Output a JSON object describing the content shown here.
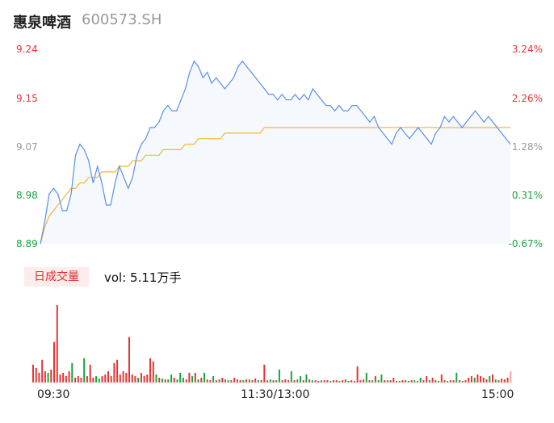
{
  "header": {
    "name": "惠泉啤酒",
    "code": "600573.SH"
  },
  "volume": {
    "tab_label": "日成交量",
    "vol_text": "vol: 5.11万手"
  },
  "colors": {
    "price_line": "#5b8fe6",
    "avg_line": "#f5b733",
    "up": "#e83333",
    "down": "#1aa33a",
    "flat": "#999999"
  },
  "chart_data": {
    "type": "line",
    "x_ticks": [
      "09:30",
      "11:30/13:00",
      "15:00"
    ],
    "y_left_ticks": [
      "9.24",
      "9.15",
      "9.07",
      "8.98",
      "8.89"
    ],
    "y_right_ticks": [
      "3.24%",
      "2.26%",
      "1.28%",
      "0.31%",
      "-0.67%"
    ],
    "ylim": [
      8.89,
      9.24
    ],
    "series": [
      {
        "values": [
          8.89,
          8.93,
          8.98,
          8.99,
          8.98,
          8.95,
          8.95,
          8.98,
          9.05,
          9.07,
          9.06,
          9.04,
          9.0,
          9.03,
          9.0,
          8.96,
          8.96,
          9.0,
          9.03,
          9.01,
          8.99,
          9.01,
          9.05,
          9.07,
          9.08,
          9.1,
          9.1,
          9.11,
          9.13,
          9.14,
          9.13,
          9.13,
          9.15,
          9.17,
          9.2,
          9.22,
          9.21,
          9.19,
          9.2,
          9.18,
          9.19,
          9.18,
          9.17,
          9.18,
          9.19,
          9.21,
          9.22,
          9.21,
          9.2,
          9.19,
          9.18,
          9.17,
          9.16,
          9.16,
          9.15,
          9.16,
          9.15,
          9.15,
          9.16,
          9.15,
          9.16,
          9.15,
          9.17,
          9.16,
          9.15,
          9.14,
          9.14,
          9.13,
          9.14,
          9.13,
          9.13,
          9.14,
          9.14,
          9.13,
          9.12,
          9.11,
          9.12,
          9.1,
          9.09,
          9.08,
          9.07,
          9.09,
          9.1,
          9.09,
          9.08,
          9.09,
          9.1,
          9.09,
          9.08,
          9.07,
          9.09,
          9.1,
          9.12,
          9.11,
          9.12,
          9.11,
          9.1,
          9.11,
          9.12,
          9.13,
          9.12,
          9.11,
          9.12,
          9.11,
          9.1,
          9.09,
          9.08,
          9.07
        ]
      },
      {
        "values": [
          8.89,
          8.92,
          8.94,
          8.95,
          8.96,
          8.97,
          8.98,
          8.99,
          8.99,
          9.0,
          9.0,
          9.01,
          9.01,
          9.01,
          9.02,
          9.02,
          9.02,
          9.02,
          9.03,
          9.03,
          9.03,
          9.04,
          9.04,
          9.04,
          9.05,
          9.05,
          9.05,
          9.05,
          9.06,
          9.06,
          9.06,
          9.06,
          9.06,
          9.07,
          9.07,
          9.07,
          9.08,
          9.08,
          9.08,
          9.08,
          9.08,
          9.08,
          9.09,
          9.09,
          9.09,
          9.09,
          9.09,
          9.09,
          9.09,
          9.09,
          9.09,
          9.1,
          9.1,
          9.1,
          9.1,
          9.1,
          9.1,
          9.1,
          9.1,
          9.1,
          9.1,
          9.1,
          9.1,
          9.1,
          9.1,
          9.1,
          9.1,
          9.1,
          9.1,
          9.1,
          9.1,
          9.1,
          9.1,
          9.1,
          9.1,
          9.1,
          9.1,
          9.1,
          9.1,
          9.1,
          9.1,
          9.1,
          9.1,
          9.1,
          9.1,
          9.1,
          9.1,
          9.1,
          9.1,
          9.1,
          9.1,
          9.1,
          9.1,
          9.1,
          9.1,
          9.1,
          9.1,
          9.1,
          9.1,
          9.1,
          9.1,
          9.1,
          9.1,
          9.1,
          9.1,
          9.1,
          9.1,
          9.1
        ]
      }
    ],
    "volume_bars": [
      {
        "v": 22,
        "c": "up"
      },
      {
        "v": 18,
        "c": "up"
      },
      {
        "v": 12,
        "c": "up"
      },
      {
        "v": 28,
        "c": "up"
      },
      {
        "v": 14,
        "c": "up"
      },
      {
        "v": 12,
        "c": "down"
      },
      {
        "v": 16,
        "c": "up"
      },
      {
        "v": 50,
        "c": "up"
      },
      {
        "v": 95,
        "c": "up"
      },
      {
        "v": 10,
        "c": "up"
      },
      {
        "v": 12,
        "c": "up"
      },
      {
        "v": 8,
        "c": "up"
      },
      {
        "v": 14,
        "c": "up"
      },
      {
        "v": 24,
        "c": "down"
      },
      {
        "v": 6,
        "c": "up"
      },
      {
        "v": 8,
        "c": "up"
      },
      {
        "v": 6,
        "c": "up"
      },
      {
        "v": 30,
        "c": "down"
      },
      {
        "v": 8,
        "c": "up"
      },
      {
        "v": 22,
        "c": "up"
      },
      {
        "v": 6,
        "c": "up"
      },
      {
        "v": 8,
        "c": "down"
      },
      {
        "v": 5,
        "c": "down"
      },
      {
        "v": 8,
        "c": "up"
      },
      {
        "v": 10,
        "c": "up"
      },
      {
        "v": 14,
        "c": "up"
      },
      {
        "v": 8,
        "c": "up"
      },
      {
        "v": 24,
        "c": "up"
      },
      {
        "v": 28,
        "c": "up"
      },
      {
        "v": 10,
        "c": "up"
      },
      {
        "v": 14,
        "c": "up"
      },
      {
        "v": 12,
        "c": "up"
      },
      {
        "v": 56,
        "c": "up"
      },
      {
        "v": 10,
        "c": "up"
      },
      {
        "v": 8,
        "c": "up"
      },
      {
        "v": 6,
        "c": "down"
      },
      {
        "v": 12,
        "c": "up"
      },
      {
        "v": 8,
        "c": "up"
      },
      {
        "v": 10,
        "c": "up"
      },
      {
        "v": 30,
        "c": "up"
      },
      {
        "v": 26,
        "c": "up"
      },
      {
        "v": 10,
        "c": "down"
      },
      {
        "v": 6,
        "c": "up"
      },
      {
        "v": 5,
        "c": "down"
      },
      {
        "v": 4,
        "c": "up"
      },
      {
        "v": 4,
        "c": "down"
      },
      {
        "v": 10,
        "c": "down"
      },
      {
        "v": 6,
        "c": "up"
      },
      {
        "v": 4,
        "c": "down"
      },
      {
        "v": 12,
        "c": "down"
      },
      {
        "v": 6,
        "c": "down"
      },
      {
        "v": 4,
        "c": "up"
      },
      {
        "v": 12,
        "c": "up"
      },
      {
        "v": 8,
        "c": "down"
      },
      {
        "v": 12,
        "c": "up"
      },
      {
        "v": 4,
        "c": "down"
      },
      {
        "v": 6,
        "c": "up"
      },
      {
        "v": 12,
        "c": "down"
      },
      {
        "v": 4,
        "c": "up"
      },
      {
        "v": 3,
        "c": "up"
      },
      {
        "v": 8,
        "c": "down"
      },
      {
        "v": 3,
        "c": "up"
      },
      {
        "v": 4,
        "c": "down"
      },
      {
        "v": 6,
        "c": "up"
      },
      {
        "v": 4,
        "c": "up"
      },
      {
        "v": 3,
        "c": "down"
      },
      {
        "v": 3,
        "c": "up"
      },
      {
        "v": 6,
        "c": "up"
      },
      {
        "v": 4,
        "c": "up"
      },
      {
        "v": 3,
        "c": "up"
      },
      {
        "v": 3,
        "c": "down"
      },
      {
        "v": 4,
        "c": "up"
      },
      {
        "v": 4,
        "c": "down"
      },
      {
        "v": 3,
        "c": "up"
      },
      {
        "v": 5,
        "c": "up"
      },
      {
        "v": 3,
        "c": "down"
      },
      {
        "v": 3,
        "c": "up"
      },
      {
        "v": 22,
        "c": "up"
      },
      {
        "v": 3,
        "c": "up"
      },
      {
        "v": 4,
        "c": "down"
      },
      {
        "v": 3,
        "c": "up"
      },
      {
        "v": 3,
        "c": "down"
      },
      {
        "v": 16,
        "c": "down"
      },
      {
        "v": 3,
        "c": "up"
      },
      {
        "v": 4,
        "c": "up"
      },
      {
        "v": 3,
        "c": "up"
      },
      {
        "v": 14,
        "c": "down"
      },
      {
        "v": 3,
        "c": "up"
      },
      {
        "v": 4,
        "c": "down"
      },
      {
        "v": 8,
        "c": "down"
      },
      {
        "v": 3,
        "c": "up"
      },
      {
        "v": 10,
        "c": "down"
      },
      {
        "v": 4,
        "c": "up"
      },
      {
        "v": 3,
        "c": "down"
      },
      {
        "v": 3,
        "c": "up"
      },
      {
        "v": 2,
        "c": "up"
      },
      {
        "v": 3,
        "c": "down"
      },
      {
        "v": 3,
        "c": "up"
      },
      {
        "v": 3,
        "c": "up"
      },
      {
        "v": 2,
        "c": "down"
      },
      {
        "v": 3,
        "c": "up"
      },
      {
        "v": 3,
        "c": "up"
      },
      {
        "v": 2,
        "c": "down"
      },
      {
        "v": 3,
        "c": "up"
      },
      {
        "v": 4,
        "c": "up"
      },
      {
        "v": 2,
        "c": "down"
      },
      {
        "v": 3,
        "c": "up"
      },
      {
        "v": 2,
        "c": "up"
      },
      {
        "v": 20,
        "c": "up"
      },
      {
        "v": 3,
        "c": "up"
      },
      {
        "v": 4,
        "c": "up"
      },
      {
        "v": 12,
        "c": "down"
      },
      {
        "v": 3,
        "c": "up"
      },
      {
        "v": 3,
        "c": "down"
      },
      {
        "v": 8,
        "c": "up"
      },
      {
        "v": 3,
        "c": "down"
      },
      {
        "v": 10,
        "c": "down"
      },
      {
        "v": 3,
        "c": "up"
      },
      {
        "v": 3,
        "c": "down"
      },
      {
        "v": 3,
        "c": "up"
      },
      {
        "v": 6,
        "c": "up"
      },
      {
        "v": 2,
        "c": "up"
      },
      {
        "v": 2,
        "c": "down"
      },
      {
        "v": 3,
        "c": "up"
      },
      {
        "v": 3,
        "c": "up"
      },
      {
        "v": 2,
        "c": "down"
      },
      {
        "v": 3,
        "c": "up"
      },
      {
        "v": 3,
        "c": "down"
      },
      {
        "v": 2,
        "c": "up"
      },
      {
        "v": 6,
        "c": "down"
      },
      {
        "v": 3,
        "c": "up"
      },
      {
        "v": 8,
        "c": "up"
      },
      {
        "v": 3,
        "c": "down"
      },
      {
        "v": 6,
        "c": "up"
      },
      {
        "v": 3,
        "c": "up"
      },
      {
        "v": 2,
        "c": "down"
      },
      {
        "v": 10,
        "c": "up"
      },
      {
        "v": 3,
        "c": "up"
      },
      {
        "v": 2,
        "c": "down"
      },
      {
        "v": 3,
        "c": "up"
      },
      {
        "v": 3,
        "c": "up"
      },
      {
        "v": 12,
        "c": "down"
      },
      {
        "v": 3,
        "c": "up"
      },
      {
        "v": 2,
        "c": "down"
      },
      {
        "v": 3,
        "c": "up"
      },
      {
        "v": 6,
        "c": "up"
      },
      {
        "v": 8,
        "c": "up"
      },
      {
        "v": 6,
        "c": "down"
      },
      {
        "v": 10,
        "c": "up"
      },
      {
        "v": 8,
        "c": "up"
      },
      {
        "v": 6,
        "c": "up"
      },
      {
        "v": 4,
        "c": "up"
      },
      {
        "v": 8,
        "c": "down"
      },
      {
        "v": 10,
        "c": "up"
      },
      {
        "v": 4,
        "c": "down"
      },
      {
        "v": 3,
        "c": "up"
      },
      {
        "v": 5,
        "c": "up"
      },
      {
        "v": 4,
        "c": "up"
      },
      {
        "v": 6,
        "c": "up"
      },
      {
        "v": 14,
        "c": "flat"
      }
    ]
  }
}
